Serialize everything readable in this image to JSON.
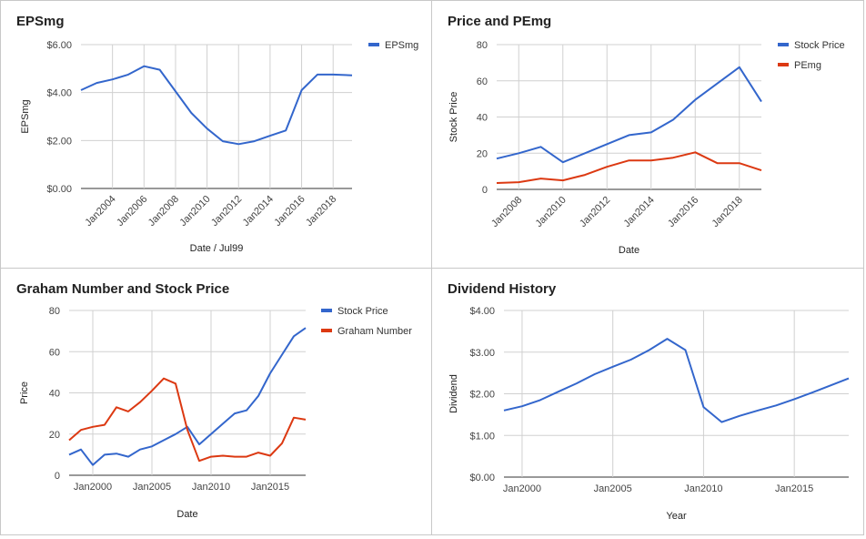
{
  "chart_data": [
    {
      "type": "line",
      "title": "EPSmg",
      "xlabel": "Date / Jul99",
      "ylabel": "EPSmg",
      "x_ticks": [
        "Jan2004",
        "Jan2006",
        "Jan2008",
        "Jan2010",
        "Jan2012",
        "Jan2014",
        "Jan2016",
        "Jan2018"
      ],
      "x_tick_values": [
        2004,
        2006,
        2008,
        2010,
        2012,
        2014,
        2016,
        2018
      ],
      "xlim": [
        2002,
        2019.2
      ],
      "y_ticks": [
        "$0.00",
        "$2.00",
        "$4.00",
        "$6.00"
      ],
      "y_tick_values": [
        0,
        2,
        4,
        6
      ],
      "ylim": [
        0,
        6
      ],
      "legend_position": "right",
      "colors": {
        "line1": "#3366cc"
      },
      "series": [
        {
          "name": "EPSmg",
          "color": "#3366cc",
          "x": [
            2002,
            2003,
            2004,
            2005,
            2006,
            2007,
            2008,
            2009,
            2010,
            2011,
            2012,
            2013,
            2014,
            2015,
            2016,
            2017,
            2018,
            2019.2
          ],
          "y": [
            4.1,
            4.4,
            4.55,
            4.75,
            5.1,
            4.95,
            4.05,
            3.15,
            2.5,
            1.97,
            1.85,
            1.97,
            2.2,
            2.42,
            4.1,
            4.75,
            4.75,
            4.72
          ]
        }
      ]
    },
    {
      "type": "line",
      "title": "Price and PEmg",
      "xlabel": "Date",
      "ylabel": "Stock Price",
      "x_ticks": [
        "Jan2008",
        "Jan2010",
        "Jan2012",
        "Jan2014",
        "Jan2016",
        "Jan2018"
      ],
      "x_tick_values": [
        2008,
        2010,
        2012,
        2014,
        2016,
        2018
      ],
      "xlim": [
        2007,
        2019
      ],
      "y_ticks": [
        "0",
        "20",
        "40",
        "60",
        "80"
      ],
      "y_tick_values": [
        0,
        20,
        40,
        60,
        80
      ],
      "ylim": [
        0,
        80
      ],
      "legend_position": "right",
      "colors": {
        "line1": "#3366cc",
        "line2": "#dc3912"
      },
      "series": [
        {
          "name": "Stock Price",
          "color": "#3366cc",
          "x": [
            2007,
            2008,
            2009,
            2010,
            2011,
            2012,
            2013,
            2014,
            2015,
            2016,
            2017,
            2018,
            2019
          ],
          "y": [
            17,
            20,
            23.5,
            15,
            20,
            25,
            30,
            31.5,
            38.5,
            49.5,
            58.5,
            67.5,
            48.5
          ]
        },
        {
          "name": "PEmg",
          "color": "#dc3912",
          "x": [
            2007,
            2008,
            2009,
            2010,
            2011,
            2012,
            2013,
            2014,
            2015,
            2016,
            2017,
            2018,
            2019
          ],
          "y": [
            3.5,
            4,
            6,
            5,
            8,
            12.5,
            16,
            16,
            17.5,
            20.5,
            14.5,
            14.5,
            10.5
          ]
        }
      ]
    },
    {
      "type": "line",
      "title": "Graham Number and Stock Price",
      "xlabel": "Date",
      "ylabel": "Price",
      "x_ticks": [
        "Jan2000",
        "Jan2005",
        "Jan2010",
        "Jan2015"
      ],
      "x_tick_values": [
        2000,
        2005,
        2010,
        2015
      ],
      "xlim": [
        1998,
        2018
      ],
      "y_ticks": [
        "0",
        "20",
        "40",
        "60",
        "80"
      ],
      "y_tick_values": [
        0,
        20,
        40,
        60,
        80
      ],
      "ylim": [
        0,
        80
      ],
      "legend_position": "right",
      "colors": {
        "line1": "#3366cc",
        "line2": "#dc3912"
      },
      "series": [
        {
          "name": "Stock Price",
          "color": "#3366cc",
          "x": [
            1998,
            1999,
            2000,
            2001,
            2002,
            2003,
            2004,
            2005,
            2006,
            2007,
            2008,
            2009,
            2010,
            2011,
            2012,
            2013,
            2014,
            2015,
            2016,
            2017,
            2018
          ],
          "y": [
            10,
            12.5,
            5,
            10,
            10.5,
            9,
            12.5,
            14,
            17,
            20,
            23.5,
            15,
            20,
            25,
            30,
            31.5,
            38.5,
            49.5,
            58.5,
            67.5,
            71.5
          ]
        },
        {
          "name": "Graham Number",
          "color": "#dc3912",
          "x": [
            1998,
            1999,
            2000,
            2001,
            2002,
            2003,
            2004,
            2005,
            2006,
            2007,
            2008,
            2009,
            2010,
            2011,
            2012,
            2013,
            2014,
            2015,
            2016,
            2017,
            2018
          ],
          "y": [
            17,
            22,
            23.5,
            24.5,
            33,
            31,
            35.5,
            41,
            47,
            44.5,
            22,
            7,
            9,
            9.5,
            9,
            9,
            11,
            9.5,
            15.5,
            28,
            27
          ]
        }
      ]
    },
    {
      "type": "line",
      "title": "Dividend History",
      "xlabel": "Year",
      "ylabel": "Dividend",
      "x_ticks": [
        "Jan2000",
        "Jan2005",
        "Jan2010",
        "Jan2015"
      ],
      "x_tick_values": [
        2000,
        2005,
        2010,
        2015
      ],
      "xlim": [
        1999,
        2018
      ],
      "y_ticks": [
        "$0.00",
        "$1.00",
        "$2.00",
        "$3.00",
        "$4.00"
      ],
      "y_tick_values": [
        0,
        1,
        2,
        3,
        4
      ],
      "ylim": [
        0,
        4
      ],
      "legend_position": "none",
      "colors": {
        "line1": "#3366cc"
      },
      "series": [
        {
          "name": "",
          "color": "#3366cc",
          "x": [
            1999,
            2000,
            2001,
            2002,
            2003,
            2004,
            2005,
            2006,
            2007,
            2008,
            2009,
            2010,
            2011,
            2012,
            2013,
            2014,
            2015,
            2016,
            2017,
            2018
          ],
          "y": [
            1.6,
            1.7,
            1.85,
            2.05,
            2.25,
            2.47,
            2.65,
            2.82,
            3.05,
            3.32,
            3.05,
            1.68,
            1.32,
            1.47,
            1.6,
            1.72,
            1.87,
            2.03,
            2.2,
            2.37
          ]
        }
      ]
    }
  ]
}
